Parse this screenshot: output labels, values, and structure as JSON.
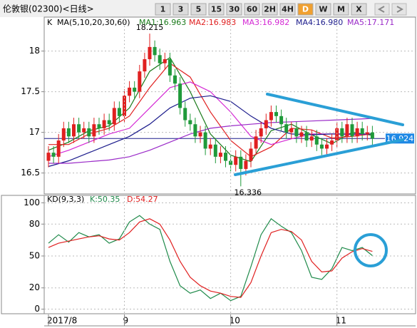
{
  "header": {
    "title": "伦敦银(02300)<日线>",
    "buttons": [
      "1",
      "3",
      "5",
      "15",
      "30",
      "60",
      "2H",
      "4H",
      "D",
      "W",
      "M",
      "X"
    ],
    "active_button": "D"
  },
  "chart_data": [
    {
      "type": "candlestick",
      "title": "K",
      "subtitle": "MA(5,10,20,30,60)",
      "open": [
        16.65,
        16.75,
        16.7,
        16.9,
        17.05,
        16.95,
        17.1,
        17.0,
        17.05,
        16.95,
        17.1,
        17.05,
        17.15,
        17.1,
        17.3,
        17.2,
        17.45,
        17.55,
        17.5,
        17.75,
        17.9,
        18.05,
        17.95,
        17.85,
        17.9,
        17.7,
        17.6,
        17.3,
        17.15,
        17.1,
        16.95,
        17.0,
        16.8,
        16.85,
        16.7,
        16.75,
        16.65,
        16.6,
        16.7,
        16.55,
        16.65,
        16.8,
        16.95,
        17.05,
        17.15,
        17.25,
        17.2,
        17.1,
        17.0,
        17.05,
        16.95,
        17.0,
        16.9,
        16.95,
        16.85,
        16.8,
        16.85,
        16.9,
        17.05,
        16.95,
        17.1,
        16.95,
        17.05,
        16.98,
        17.0
      ],
      "high": [
        16.83,
        16.83,
        16.98,
        17.13,
        17.13,
        17.18,
        17.18,
        17.13,
        17.13,
        17.18,
        17.18,
        17.23,
        17.23,
        17.38,
        17.38,
        17.53,
        17.63,
        17.63,
        17.83,
        17.98,
        18.215,
        18.13,
        18.03,
        17.98,
        17.98,
        17.78,
        17.68,
        17.38,
        17.23,
        17.18,
        17.08,
        17.08,
        16.93,
        16.93,
        16.83,
        16.83,
        16.73,
        16.78,
        16.78,
        16.73,
        16.88,
        17.03,
        17.13,
        17.23,
        17.33,
        17.33,
        17.28,
        17.18,
        17.13,
        17.13,
        17.08,
        17.08,
        17.03,
        17.03,
        16.93,
        16.93,
        16.98,
        17.13,
        17.13,
        17.18,
        17.18,
        17.13,
        17.13,
        17.08,
        17.08
      ],
      "low": [
        16.57,
        16.62,
        16.62,
        16.82,
        16.87,
        16.87,
        16.92,
        16.92,
        16.87,
        16.87,
        16.97,
        16.97,
        17.02,
        17.02,
        17.12,
        17.12,
        17.37,
        17.42,
        17.42,
        17.67,
        17.82,
        17.87,
        17.77,
        17.77,
        17.62,
        17.52,
        17.22,
        17.07,
        17.02,
        16.87,
        16.87,
        16.72,
        16.72,
        16.62,
        16.62,
        16.57,
        16.52,
        16.52,
        16.336,
        16.47,
        16.57,
        16.72,
        16.87,
        16.97,
        17.07,
        17.12,
        17.02,
        16.92,
        16.92,
        16.87,
        16.87,
        16.82,
        16.82,
        16.77,
        16.72,
        16.72,
        16.77,
        16.82,
        16.87,
        16.87,
        16.87,
        16.87,
        16.9,
        16.9,
        16.84
      ],
      "close": [
        16.75,
        16.7,
        16.9,
        17.05,
        16.95,
        17.1,
        17.0,
        17.05,
        16.95,
        17.1,
        17.05,
        17.15,
        17.1,
        17.3,
        17.2,
        17.45,
        17.55,
        17.5,
        17.75,
        17.9,
        18.05,
        17.95,
        17.85,
        17.9,
        17.7,
        17.6,
        17.3,
        17.15,
        17.1,
        16.95,
        17.0,
        16.8,
        16.85,
        16.7,
        16.75,
        16.65,
        16.6,
        16.7,
        16.55,
        16.65,
        16.8,
        16.95,
        17.05,
        17.15,
        17.25,
        17.2,
        17.1,
        17.0,
        17.05,
        16.95,
        17.0,
        16.9,
        16.95,
        16.85,
        16.8,
        16.85,
        16.9,
        17.05,
        16.95,
        17.1,
        16.95,
        17.05,
        16.98,
        17.0,
        16.924
      ],
      "up_color": "#e02020",
      "down_color": "#1f9a3a",
      "series": [
        {
          "name": "MA1:16.963",
          "color": "#1a7a1a",
          "x": [
            0,
            4,
            8,
            12,
            16,
            20,
            24,
            28,
            32,
            36,
            40,
            44,
            48,
            52,
            56,
            60,
            64
          ],
          "values": [
            16.78,
            16.88,
            17.02,
            17.08,
            17.3,
            17.75,
            17.92,
            17.5,
            16.98,
            16.72,
            16.64,
            17.02,
            17.1,
            16.97,
            16.86,
            17.0,
            16.963
          ]
        },
        {
          "name": "MA2:16.983",
          "color": "#e02020",
          "x": [
            0,
            4,
            8,
            12,
            16,
            20,
            24,
            28,
            32,
            36,
            40,
            44,
            48,
            52,
            56,
            60,
            64
          ],
          "values": [
            16.85,
            16.85,
            16.98,
            17.05,
            17.2,
            17.55,
            17.85,
            17.68,
            17.25,
            16.9,
            16.7,
            16.82,
            17.05,
            17.03,
            16.93,
            16.95,
            16.983
          ]
        },
        {
          "name": "MA3:16.982",
          "color": "#d428d4",
          "x": [
            0,
            4,
            8,
            12,
            16,
            20,
            24,
            28,
            32,
            36,
            40,
            44,
            48,
            52,
            56,
            60,
            64
          ],
          "values": [
            16.7,
            16.78,
            16.88,
            16.98,
            17.05,
            17.3,
            17.55,
            17.62,
            17.5,
            17.25,
            16.95,
            16.85,
            16.92,
            16.98,
            16.98,
            16.97,
            16.982
          ]
        },
        {
          "name": "MA4:16.980",
          "color": "#1c1c8c",
          "x": [
            0,
            4,
            8,
            12,
            16,
            20,
            24,
            28,
            32,
            36,
            40,
            44,
            48,
            52,
            56,
            60,
            64
          ],
          "values": [
            16.58,
            16.65,
            16.75,
            16.85,
            16.95,
            17.1,
            17.3,
            17.42,
            17.45,
            17.38,
            17.2,
            17.05,
            16.98,
            16.97,
            16.98,
            16.98,
            16.98
          ]
        },
        {
          "name": "MA5:17.171",
          "color": "#9a2ac8",
          "x": [
            0,
            4,
            8,
            12,
            16,
            20,
            24,
            28,
            32,
            36,
            40,
            44,
            48,
            52,
            56,
            60,
            64
          ],
          "values": [
            16.62,
            16.62,
            16.64,
            16.66,
            16.7,
            16.78,
            16.88,
            16.98,
            17.05,
            17.08,
            17.1,
            17.12,
            17.13,
            17.14,
            17.15,
            17.16,
            17.171
          ]
        }
      ],
      "annotations": [
        {
          "value": 18.215,
          "x": 20,
          "side": "top"
        },
        {
          "value": 16.336,
          "x": 38,
          "side": "bottom"
        }
      ],
      "last_price": 16.924,
      "last_price_color": "#1e88e5",
      "ylim": [
        16.26,
        18.4
      ],
      "yticks": [
        16.5,
        17,
        17.5,
        18
      ],
      "grid": true
    },
    {
      "type": "line",
      "title": "KD(9,3,3)",
      "categories": [
        "2017/8",
        null,
        null,
        null,
        null,
        null,
        null,
        null,
        null,
        null,
        null,
        null,
        null,
        null,
        null,
        "9",
        null,
        null,
        null,
        null,
        null,
        null,
        null,
        null,
        null,
        null,
        null,
        null,
        null,
        null,
        null,
        null,
        null,
        null,
        null,
        null,
        "10",
        null,
        null,
        null,
        null,
        null,
        null,
        null,
        null,
        null,
        null,
        null,
        null,
        null,
        null,
        null,
        null,
        null,
        null,
        null,
        null,
        "11",
        null,
        null,
        null,
        null,
        null,
        null,
        null
      ],
      "series": [
        {
          "name": "K:50.35",
          "color": "#1f8a4a",
          "x": [
            0,
            2,
            4,
            6,
            8,
            10,
            12,
            14,
            16,
            18,
            20,
            22,
            24,
            26,
            28,
            30,
            32,
            34,
            36,
            38,
            40,
            42,
            44,
            46,
            48,
            50,
            52,
            54,
            56,
            58,
            60,
            62,
            64
          ],
          "values": [
            62,
            70,
            63,
            72,
            68,
            70,
            62,
            66,
            82,
            88,
            80,
            75,
            45,
            22,
            15,
            18,
            10,
            15,
            8,
            12,
            40,
            70,
            85,
            78,
            72,
            55,
            30,
            28,
            38,
            58,
            55,
            58,
            50.35
          ]
        },
        {
          "name": "D:54.27",
          "color": "#e02020",
          "x": [
            0,
            2,
            4,
            6,
            8,
            10,
            12,
            14,
            16,
            18,
            20,
            22,
            24,
            26,
            28,
            30,
            32,
            34,
            36,
            38,
            40,
            42,
            44,
            46,
            48,
            50,
            52,
            54,
            56,
            58,
            60,
            62,
            64
          ],
          "values": [
            58,
            62,
            64,
            66,
            68,
            69,
            66,
            65,
            72,
            82,
            85,
            80,
            65,
            45,
            30,
            22,
            17,
            15,
            12,
            11,
            25,
            50,
            72,
            75,
            73,
            65,
            45,
            35,
            36,
            48,
            54,
            57,
            54.27
          ]
        }
      ],
      "ylim": [
        -5,
        105
      ],
      "yticks": [
        0,
        20,
        50,
        80,
        100
      ],
      "grid": true
    }
  ]
}
